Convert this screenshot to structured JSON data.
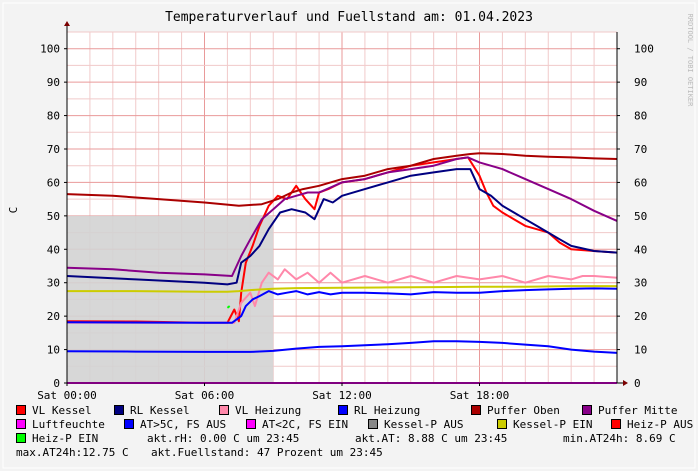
{
  "chart_data": {
    "type": "line",
    "title": "Temperaturverlauf und Fuellstand am: 01.04.2023",
    "ylabel": "C",
    "watermark": "RRDTOOL / TOBI OETIKER",
    "ylim": [
      0,
      105
    ],
    "xlim": [
      0,
      24
    ],
    "grid": true,
    "legend_position": "bottom",
    "y_ticks": [
      0,
      10,
      20,
      30,
      40,
      50,
      60,
      70,
      80,
      90,
      100
    ],
    "x_ticks": [
      {
        "value": 0,
        "label": "Sat 00:00"
      },
      {
        "value": 6,
        "label": "Sat 06:00"
      },
      {
        "value": 12,
        "label": "Sat 12:00"
      },
      {
        "value": 18,
        "label": "Sat 18:00"
      }
    ],
    "area": {
      "name": "Fuellstand",
      "color": "#d3d3d3",
      "points": [
        [
          0,
          50
        ],
        [
          9,
          50
        ]
      ]
    },
    "series": [
      {
        "name": "VL Kessel",
        "color": "#ff0000",
        "points": [
          [
            0,
            18.5
          ],
          [
            3,
            18.4
          ],
          [
            6,
            18
          ],
          [
            7,
            18
          ],
          [
            7.3,
            22
          ],
          [
            7.5,
            18.5
          ],
          [
            7.6,
            27
          ],
          [
            7.8,
            36
          ],
          [
            8.1,
            41
          ],
          [
            8.4,
            47
          ],
          [
            8.8,
            53
          ],
          [
            9.2,
            56
          ],
          [
            9.6,
            55
          ],
          [
            10,
            59
          ],
          [
            10.4,
            55
          ],
          [
            10.8,
            52
          ],
          [
            11,
            57
          ],
          [
            11.4,
            58
          ],
          [
            12,
            60
          ],
          [
            13,
            61
          ],
          [
            14,
            63
          ],
          [
            15,
            65
          ],
          [
            16,
            66
          ],
          [
            17,
            67
          ],
          [
            17.5,
            67.5
          ],
          [
            18,
            62
          ],
          [
            18.3,
            57
          ],
          [
            18.6,
            53
          ],
          [
            19,
            51
          ],
          [
            19.5,
            49
          ],
          [
            20,
            47
          ],
          [
            20.5,
            46
          ],
          [
            21,
            45
          ],
          [
            21.5,
            42
          ],
          [
            22,
            40
          ],
          [
            23,
            39.5
          ],
          [
            24,
            39
          ]
        ]
      },
      {
        "name": "RL Kessel",
        "color": "#000080",
        "points": [
          [
            0,
            32
          ],
          [
            3,
            31
          ],
          [
            6,
            30
          ],
          [
            7,
            29.5
          ],
          [
            7.4,
            30
          ],
          [
            7.6,
            36
          ],
          [
            8,
            38
          ],
          [
            8.4,
            41
          ],
          [
            8.8,
            46
          ],
          [
            9.3,
            51
          ],
          [
            9.8,
            52
          ],
          [
            10.4,
            51
          ],
          [
            10.8,
            49
          ],
          [
            11.2,
            55
          ],
          [
            11.6,
            54
          ],
          [
            12,
            56
          ],
          [
            13,
            58
          ],
          [
            14,
            60
          ],
          [
            15,
            62
          ],
          [
            16,
            63
          ],
          [
            17,
            64
          ],
          [
            17.6,
            64
          ],
          [
            18,
            58
          ],
          [
            18.5,
            56
          ],
          [
            19,
            53
          ],
          [
            19.5,
            51
          ],
          [
            20,
            49
          ],
          [
            20.5,
            47
          ],
          [
            21,
            45
          ],
          [
            21.5,
            43
          ],
          [
            22,
            41
          ],
          [
            23,
            39.5
          ],
          [
            24,
            39
          ]
        ]
      },
      {
        "name": "VL Heizung",
        "color": "#ff88aa",
        "points": [
          [
            0,
            18
          ],
          [
            6,
            18
          ],
          [
            7.3,
            18
          ],
          [
            7.6,
            24
          ],
          [
            8,
            27
          ],
          [
            8.2,
            23
          ],
          [
            8.5,
            30
          ],
          [
            8.8,
            33
          ],
          [
            9.2,
            31
          ],
          [
            9.5,
            34
          ],
          [
            10,
            31
          ],
          [
            10.5,
            33
          ],
          [
            11,
            30
          ],
          [
            11.5,
            33
          ],
          [
            12,
            30
          ],
          [
            13,
            32
          ],
          [
            14,
            30
          ],
          [
            15,
            32
          ],
          [
            16,
            30
          ],
          [
            17,
            32
          ],
          [
            18,
            31
          ],
          [
            19,
            32
          ],
          [
            20,
            30
          ],
          [
            21,
            32
          ],
          [
            22,
            31
          ],
          [
            22.5,
            32
          ],
          [
            23,
            32
          ],
          [
            24,
            31.5
          ]
        ]
      },
      {
        "name": "RL Heizung",
        "color": "#0000ff",
        "points": [
          [
            0,
            9.5
          ],
          [
            3,
            9.4
          ],
          [
            6,
            9.3
          ],
          [
            8,
            9.3
          ],
          [
            9,
            9.6
          ],
          [
            10,
            10.3
          ],
          [
            11,
            10.8
          ],
          [
            12,
            11
          ],
          [
            13,
            11.3
          ],
          [
            14,
            11.6
          ],
          [
            15,
            12
          ],
          [
            16,
            12.5
          ],
          [
            17,
            12.5
          ],
          [
            18,
            12.3
          ],
          [
            19,
            12
          ],
          [
            20,
            11.5
          ],
          [
            21,
            11
          ],
          [
            22,
            10
          ],
          [
            23,
            9.4
          ],
          [
            24,
            9
          ]
        ]
      },
      {
        "name": "Puffer Oben",
        "color": "#aa0000",
        "points": [
          [
            0,
            56.5
          ],
          [
            2,
            56
          ],
          [
            4,
            55
          ],
          [
            6,
            54
          ],
          [
            7.5,
            53
          ],
          [
            8.5,
            53.5
          ],
          [
            9.2,
            55
          ],
          [
            9.8,
            57
          ],
          [
            10.3,
            58
          ],
          [
            11,
            59
          ],
          [
            12,
            61
          ],
          [
            13,
            62
          ],
          [
            14,
            64
          ],
          [
            15,
            65
          ],
          [
            16,
            67
          ],
          [
            17,
            68
          ],
          [
            17.6,
            68.5
          ],
          [
            18,
            68.7
          ],
          [
            19,
            68.5
          ],
          [
            20,
            68
          ],
          [
            21,
            67.7
          ],
          [
            22,
            67.5
          ],
          [
            23,
            67.2
          ],
          [
            24,
            67
          ]
        ]
      },
      {
        "name": "Puffer Mitte",
        "color": "#880088",
        "points": [
          [
            0,
            34.5
          ],
          [
            2,
            34
          ],
          [
            4,
            33
          ],
          [
            6,
            32.5
          ],
          [
            7.2,
            32
          ],
          [
            7.6,
            38
          ],
          [
            8,
            43
          ],
          [
            8.5,
            49
          ],
          [
            9,
            52
          ],
          [
            9.5,
            55
          ],
          [
            10,
            56
          ],
          [
            10.5,
            57
          ],
          [
            11,
            57
          ],
          [
            12,
            60
          ],
          [
            13,
            61
          ],
          [
            14,
            63
          ],
          [
            15,
            64
          ],
          [
            16,
            65
          ],
          [
            17,
            67
          ],
          [
            17.5,
            67.5
          ],
          [
            18,
            66
          ],
          [
            19,
            64
          ],
          [
            20,
            61
          ],
          [
            21,
            58
          ],
          [
            22,
            55
          ],
          [
            23,
            51.5
          ],
          [
            24,
            48.5
          ]
        ]
      },
      {
        "name": "Luftfeuchte",
        "color": "#ff00ff",
        "points": [
          [
            0,
            0
          ],
          [
            24,
            0
          ]
        ]
      },
      {
        "name": "AT>5C, FS AUS",
        "color": "#0000ff",
        "points": [
          [
            0,
            18.2
          ],
          [
            6,
            18
          ],
          [
            7.2,
            18
          ],
          [
            7.6,
            20
          ],
          [
            7.8,
            23
          ],
          [
            8.1,
            25
          ],
          [
            8.4,
            26
          ],
          [
            8.8,
            27.5
          ],
          [
            9.2,
            26.5
          ],
          [
            9.6,
            27
          ],
          [
            10,
            27.5
          ],
          [
            10.5,
            26.5
          ],
          [
            11,
            27.2
          ],
          [
            11.5,
            26.5
          ],
          [
            12,
            27
          ],
          [
            13,
            27
          ],
          [
            14,
            26.8
          ],
          [
            15,
            26.5
          ],
          [
            16,
            27.2
          ],
          [
            17,
            27
          ],
          [
            18,
            27
          ],
          [
            19,
            27.5
          ],
          [
            20,
            27.8
          ],
          [
            21,
            28
          ],
          [
            22,
            28.2
          ],
          [
            23,
            28.3
          ],
          [
            24,
            28.2
          ]
        ]
      },
      {
        "name": "AT<2C, FS EIN",
        "color": "#ff00ff",
        "points": []
      },
      {
        "name": "Kessel-P AUS",
        "color": "#888888",
        "points": []
      },
      {
        "name": "Kessel-P EIN",
        "color": "#cccc00",
        "points": [
          [
            0,
            27.5
          ],
          [
            3,
            27.5
          ],
          [
            6,
            27.3
          ],
          [
            7,
            27.3
          ],
          [
            7.5,
            27.5
          ],
          [
            8,
            27.8
          ],
          [
            8.5,
            28
          ],
          [
            9,
            28.2
          ],
          [
            10,
            28.4
          ],
          [
            12,
            28.5
          ],
          [
            14,
            28.6
          ],
          [
            16,
            28.7
          ],
          [
            18,
            28.8
          ],
          [
            20,
            28.8
          ],
          [
            22,
            29
          ],
          [
            24,
            29
          ]
        ]
      },
      {
        "name": "Heiz-P AUS",
        "color": "#ff0000",
        "points": []
      },
      {
        "name": "Heiz-P EIN",
        "color": "#00ff00",
        "points": [
          [
            7.0,
            22.5
          ],
          [
            7.1,
            23
          ]
        ]
      }
    ],
    "legend_items": [
      {
        "label": "VL Kessel",
        "color": "#ff0000"
      },
      {
        "label": "RL Kessel",
        "color": "#000080"
      },
      {
        "label": "VL Heizung",
        "color": "#ff88aa"
      },
      {
        "label": "RL Heizung",
        "color": "#0000ff"
      },
      {
        "label": "Puffer Oben",
        "color": "#aa0000"
      },
      {
        "label": "Puffer Mitte",
        "color": "#880088"
      },
      {
        "label": "Luftfeuchte",
        "color": "#ff00ff"
      },
      {
        "label": "AT>5C, FS AUS",
        "color": "#0000ff"
      },
      {
        "label": "AT<2C, FS EIN",
        "color": "#ff00ff"
      },
      {
        "label": "Kessel-P AUS",
        "color": "#888888"
      },
      {
        "label": "Kessel-P EIN",
        "color": "#cccc00"
      },
      {
        "label": "Heiz-P AUS",
        "color": "#ff0000"
      },
      {
        "label": "Heiz-P EIN",
        "color": "#00ff00"
      }
    ],
    "stats": {
      "rh": "akt.rH: 0.00 C um 23:45",
      "at": "akt.AT: 8.88 C um 23:45",
      "min": "min.AT24h: 8.69 C",
      "max": "max.AT24h:12.75 C",
      "fuellstand": "akt.Fuellstand:   47 Prozent um 23:45"
    }
  }
}
